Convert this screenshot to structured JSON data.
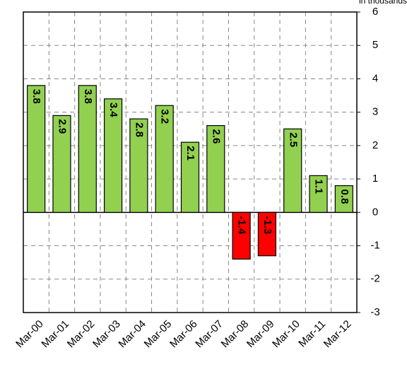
{
  "chart_data": {
    "type": "bar",
    "subtitle": "in thousands",
    "categories": [
      "Mar-00",
      "Mar-01",
      "Mar-02",
      "Mar-03",
      "Mar-04",
      "Mar-05",
      "Mar-06",
      "Mar-07",
      "Mar-08",
      "Mar-09",
      "Mar-10",
      "Mar-11",
      "Mar-12"
    ],
    "values": [
      3.8,
      2.9,
      3.8,
      3.4,
      2.8,
      3.2,
      2.1,
      2.6,
      -1.4,
      -1.3,
      2.5,
      1.1,
      0.8
    ],
    "color": "#92d050",
    "negative_color": "#ff0000",
    "ylim": [
      -3,
      6
    ],
    "yticks": [
      -3,
      -2,
      -1,
      0,
      1,
      2,
      3,
      4,
      5,
      6
    ],
    "y_axis_side": "right",
    "grid": true
  }
}
